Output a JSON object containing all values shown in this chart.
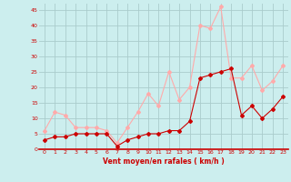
{
  "hours": [
    0,
    1,
    2,
    3,
    4,
    5,
    6,
    7,
    8,
    9,
    10,
    11,
    12,
    13,
    14,
    15,
    16,
    17,
    18,
    19,
    20,
    21,
    22,
    23
  ],
  "vent_moyen": [
    3,
    4,
    4,
    5,
    5,
    5,
    5,
    1,
    3,
    4,
    5,
    5,
    6,
    6,
    9,
    23,
    24,
    25,
    26,
    11,
    14,
    10,
    13,
    17
  ],
  "en_rafales": [
    6,
    12,
    11,
    7,
    7,
    7,
    6,
    2,
    7,
    12,
    18,
    14,
    25,
    16,
    20,
    40,
    39,
    46,
    23,
    23,
    27,
    19,
    22,
    27
  ],
  "xlabel": "Vent moyen/en rafales ( km/h )",
  "ylim": [
    0,
    47
  ],
  "yticks": [
    0,
    5,
    10,
    15,
    20,
    25,
    30,
    35,
    40,
    45
  ],
  "xticks": [
    0,
    1,
    2,
    3,
    4,
    5,
    6,
    7,
    8,
    9,
    10,
    11,
    12,
    13,
    14,
    15,
    16,
    17,
    18,
    19,
    20,
    21,
    22,
    23
  ],
  "color_moyen": "#cc0000",
  "color_rafales": "#ffaaaa",
  "bg_color": "#cceeee",
  "grid_color": "#aacccc"
}
